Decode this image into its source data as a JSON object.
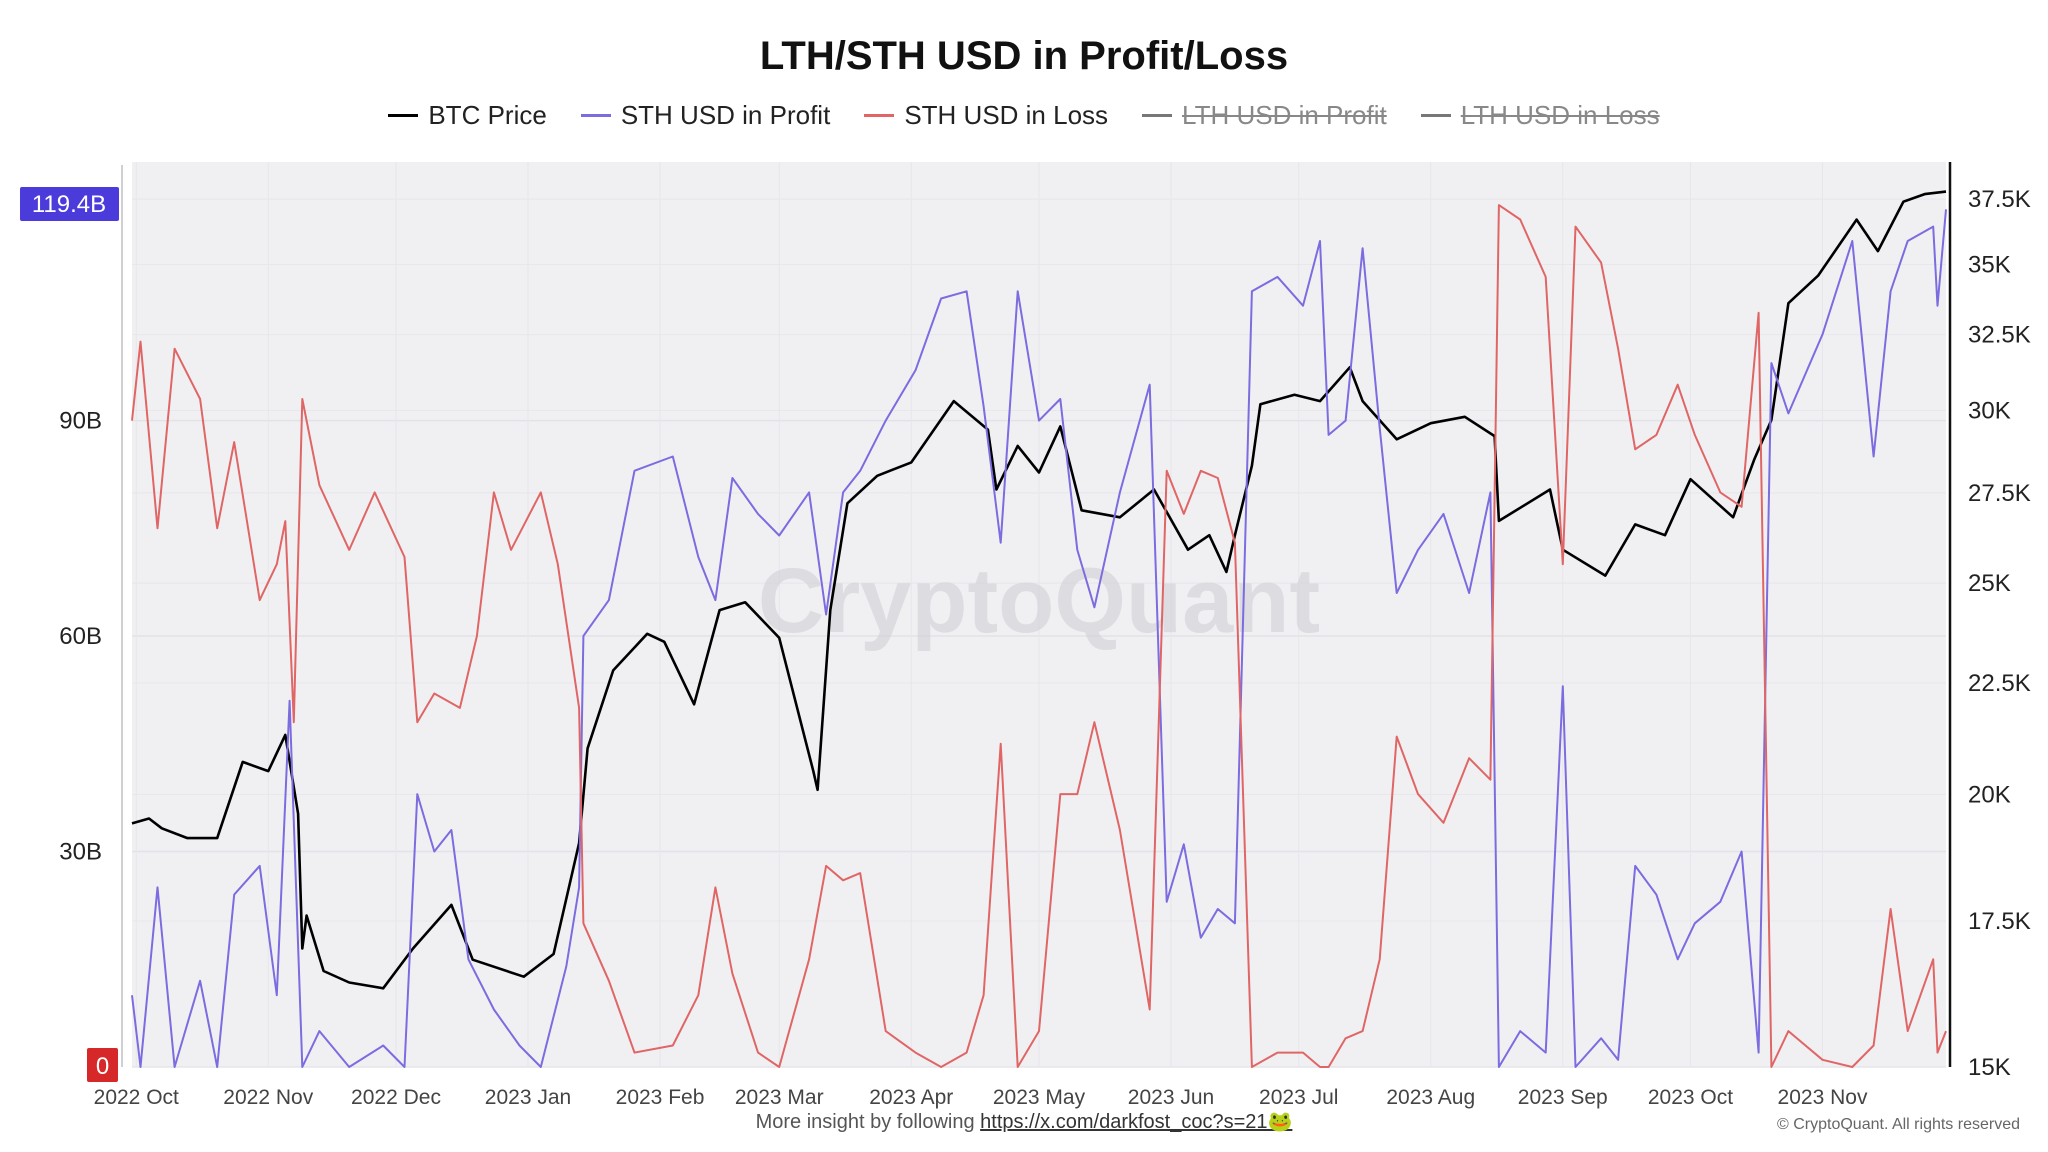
{
  "title": "LTH/STH USD in Profit/Loss",
  "legend": [
    {
      "label": "BTC Price",
      "color": "#000000",
      "hidden": false
    },
    {
      "label": "STH USD in Profit",
      "color": "#7b6ce0",
      "hidden": false
    },
    {
      "label": "STH USD in Loss",
      "color": "#e06666",
      "hidden": false
    },
    {
      "label": "LTH USD in Profit",
      "color": "#777777",
      "hidden": true
    },
    {
      "label": "LTH USD in Loss",
      "color": "#777777",
      "hidden": true
    }
  ],
  "footer": {
    "text": "More insight by following ",
    "link": "https://x.com/darkfost_coc?s=21🐸",
    "copyright": "© CryptoQuant. All rights reserved"
  },
  "watermark": "CryptoQuant",
  "chart_data": {
    "type": "line",
    "x_ticks": [
      "2022 Oct",
      "2022 Nov",
      "2022 Dec",
      "2023 Jan",
      "2023 Feb",
      "2023 Mar",
      "2023 Apr",
      "2023 May",
      "2023 Jun",
      "2023 Jul",
      "2023 Aug",
      "2023 Sep",
      "2023 Oct",
      "2023 Nov"
    ],
    "x_range": [
      "2022-09-30",
      "2023-11-30"
    ],
    "left_axis": {
      "ticks": [
        "0",
        "30B",
        "60B",
        "90B"
      ],
      "range": [
        0,
        126
      ],
      "highlight_top": "119.4B",
      "highlight_bottom": "0",
      "unit": "B USD"
    },
    "right_axis": {
      "ticks": [
        "15K",
        "17.5K",
        "20K",
        "22.5K",
        "25K",
        "27.5K",
        "30K",
        "32.5K",
        "35K",
        "37.5K"
      ],
      "scale": "log",
      "range": [
        15000,
        39000
      ]
    },
    "series": [
      {
        "name": "BTC Price",
        "axis": "right",
        "color": "#000000",
        "points": [
          [
            "2022-09-30",
            19400
          ],
          [
            "2022-10-04",
            19500
          ],
          [
            "2022-10-07",
            19300
          ],
          [
            "2022-10-13",
            19100
          ],
          [
            "2022-10-20",
            19100
          ],
          [
            "2022-10-26",
            20700
          ],
          [
            "2022-11-01",
            20500
          ],
          [
            "2022-11-05",
            21300
          ],
          [
            "2022-11-08",
            19600
          ],
          [
            "2022-11-09",
            17000
          ],
          [
            "2022-11-10",
            17600
          ],
          [
            "2022-11-14",
            16600
          ],
          [
            "2022-11-20",
            16400
          ],
          [
            "2022-11-28",
            16300
          ],
          [
            "2022-12-05",
            17000
          ],
          [
            "2022-12-14",
            17800
          ],
          [
            "2022-12-19",
            16800
          ],
          [
            "2022-12-31",
            16500
          ],
          [
            "2023-01-07",
            16900
          ],
          [
            "2023-01-13",
            19000
          ],
          [
            "2023-01-15",
            21000
          ],
          [
            "2023-01-21",
            22800
          ],
          [
            "2023-01-29",
            23700
          ],
          [
            "2023-02-02",
            23500
          ],
          [
            "2023-02-09",
            22000
          ],
          [
            "2023-02-15",
            24300
          ],
          [
            "2023-02-21",
            24500
          ],
          [
            "2023-03-01",
            23600
          ],
          [
            "2023-03-09",
            20500
          ],
          [
            "2023-03-10",
            20100
          ],
          [
            "2023-03-13",
            24300
          ],
          [
            "2023-03-17",
            27200
          ],
          [
            "2023-03-24",
            28000
          ],
          [
            "2023-04-01",
            28400
          ],
          [
            "2023-04-11",
            30300
          ],
          [
            "2023-04-19",
            29400
          ],
          [
            "2023-04-21",
            27600
          ],
          [
            "2023-04-26",
            28900
          ],
          [
            "2023-05-01",
            28100
          ],
          [
            "2023-05-06",
            29500
          ],
          [
            "2023-05-11",
            27000
          ],
          [
            "2023-05-20",
            26800
          ],
          [
            "2023-05-28",
            27600
          ],
          [
            "2023-06-05",
            25900
          ],
          [
            "2023-06-10",
            26300
          ],
          [
            "2023-06-14",
            25300
          ],
          [
            "2023-06-16",
            26300
          ],
          [
            "2023-06-20",
            28300
          ],
          [
            "2023-06-22",
            30200
          ],
          [
            "2023-06-30",
            30500
          ],
          [
            "2023-07-06",
            30300
          ],
          [
            "2023-07-13",
            31400
          ],
          [
            "2023-07-16",
            30300
          ],
          [
            "2023-07-24",
            29100
          ],
          [
            "2023-08-01",
            29600
          ],
          [
            "2023-08-09",
            29800
          ],
          [
            "2023-08-16",
            29200
          ],
          [
            "2023-08-17",
            26700
          ],
          [
            "2023-08-29",
            27600
          ],
          [
            "2023-09-01",
            25900
          ],
          [
            "2023-09-11",
            25200
          ],
          [
            "2023-09-18",
            26600
          ],
          [
            "2023-09-25",
            26300
          ],
          [
            "2023-10-01",
            27900
          ],
          [
            "2023-10-11",
            26800
          ],
          [
            "2023-10-16",
            28500
          ],
          [
            "2023-10-20",
            29700
          ],
          [
            "2023-10-24",
            33600
          ],
          [
            "2023-10-31",
            34600
          ],
          [
            "2023-11-09",
            36700
          ],
          [
            "2023-11-14",
            35500
          ],
          [
            "2023-11-20",
            37400
          ],
          [
            "2023-11-25",
            37700
          ],
          [
            "2023-11-30",
            37800
          ]
        ]
      },
      {
        "name": "STH USD in Profit",
        "axis": "left",
        "color": "#7b6ce0",
        "points": [
          [
            "2022-09-30",
            10
          ],
          [
            "2022-10-02",
            0
          ],
          [
            "2022-10-06",
            25
          ],
          [
            "2022-10-10",
            0
          ],
          [
            "2022-10-16",
            12
          ],
          [
            "2022-10-20",
            0
          ],
          [
            "2022-10-24",
            24
          ],
          [
            "2022-10-30",
            28
          ],
          [
            "2022-11-03",
            10
          ],
          [
            "2022-11-06",
            51
          ],
          [
            "2022-11-09",
            0
          ],
          [
            "2022-11-13",
            5
          ],
          [
            "2022-11-20",
            0
          ],
          [
            "2022-11-28",
            3
          ],
          [
            "2022-12-03",
            0
          ],
          [
            "2022-12-06",
            38
          ],
          [
            "2022-12-10",
            30
          ],
          [
            "2022-12-14",
            33
          ],
          [
            "2022-12-18",
            15
          ],
          [
            "2022-12-24",
            8
          ],
          [
            "2022-12-30",
            3
          ],
          [
            "2023-01-04",
            0
          ],
          [
            "2023-01-10",
            14
          ],
          [
            "2023-01-13",
            25
          ],
          [
            "2023-01-14",
            60
          ],
          [
            "2023-01-20",
            65
          ],
          [
            "2023-01-26",
            83
          ],
          [
            "2023-02-04",
            85
          ],
          [
            "2023-02-10",
            71
          ],
          [
            "2023-02-14",
            65
          ],
          [
            "2023-02-18",
            82
          ],
          [
            "2023-02-24",
            77
          ],
          [
            "2023-03-01",
            74
          ],
          [
            "2023-03-08",
            80
          ],
          [
            "2023-03-12",
            63
          ],
          [
            "2023-03-16",
            80
          ],
          [
            "2023-03-20",
            83
          ],
          [
            "2023-03-26",
            90
          ],
          [
            "2023-04-02",
            97
          ],
          [
            "2023-04-08",
            107
          ],
          [
            "2023-04-14",
            108
          ],
          [
            "2023-04-18",
            92
          ],
          [
            "2023-04-22",
            73
          ],
          [
            "2023-04-26",
            108
          ],
          [
            "2023-05-01",
            90
          ],
          [
            "2023-05-06",
            93
          ],
          [
            "2023-05-10",
            72
          ],
          [
            "2023-05-14",
            64
          ],
          [
            "2023-05-20",
            80
          ],
          [
            "2023-05-27",
            95
          ],
          [
            "2023-05-31",
            23
          ],
          [
            "2023-06-04",
            31
          ],
          [
            "2023-06-08",
            18
          ],
          [
            "2023-06-12",
            22
          ],
          [
            "2023-06-16",
            20
          ],
          [
            "2023-06-20",
            108
          ],
          [
            "2023-06-26",
            110
          ],
          [
            "2023-07-02",
            106
          ],
          [
            "2023-07-06",
            115
          ],
          [
            "2023-07-08",
            88
          ],
          [
            "2023-07-12",
            90
          ],
          [
            "2023-07-16",
            114
          ],
          [
            "2023-07-20",
            89
          ],
          [
            "2023-07-24",
            66
          ],
          [
            "2023-07-29",
            72
          ],
          [
            "2023-08-04",
            77
          ],
          [
            "2023-08-10",
            66
          ],
          [
            "2023-08-15",
            80
          ],
          [
            "2023-08-17",
            0
          ],
          [
            "2023-08-22",
            5
          ],
          [
            "2023-08-28",
            2
          ],
          [
            "2023-09-01",
            53
          ],
          [
            "2023-09-04",
            0
          ],
          [
            "2023-09-10",
            4
          ],
          [
            "2023-09-14",
            1
          ],
          [
            "2023-09-18",
            28
          ],
          [
            "2023-09-23",
            24
          ],
          [
            "2023-09-28",
            15
          ],
          [
            "2023-10-02",
            20
          ],
          [
            "2023-10-08",
            23
          ],
          [
            "2023-10-13",
            30
          ],
          [
            "2023-10-17",
            2
          ],
          [
            "2023-10-20",
            98
          ],
          [
            "2023-10-24",
            91
          ],
          [
            "2023-11-01",
            102
          ],
          [
            "2023-11-08",
            115
          ],
          [
            "2023-11-13",
            85
          ],
          [
            "2023-11-17",
            108
          ],
          [
            "2023-11-21",
            115
          ],
          [
            "2023-11-27",
            117
          ],
          [
            "2023-11-28",
            106
          ],
          [
            "2023-11-30",
            119.4
          ]
        ]
      },
      {
        "name": "STH USD in Loss",
        "axis": "left",
        "color": "#e06666",
        "points": [
          [
            "2022-09-30",
            90
          ],
          [
            "2022-10-02",
            101
          ],
          [
            "2022-10-06",
            75
          ],
          [
            "2022-10-10",
            100
          ],
          [
            "2022-10-16",
            93
          ],
          [
            "2022-10-20",
            75
          ],
          [
            "2022-10-24",
            87
          ],
          [
            "2022-10-30",
            65
          ],
          [
            "2022-11-03",
            70
          ],
          [
            "2022-11-05",
            76
          ],
          [
            "2022-11-07",
            48
          ],
          [
            "2022-11-09",
            93
          ],
          [
            "2022-11-13",
            81
          ],
          [
            "2022-11-20",
            72
          ],
          [
            "2022-11-26",
            80
          ],
          [
            "2022-12-03",
            71
          ],
          [
            "2022-12-06",
            48
          ],
          [
            "2022-12-10",
            52
          ],
          [
            "2022-12-16",
            50
          ],
          [
            "2022-12-20",
            60
          ],
          [
            "2022-12-24",
            80
          ],
          [
            "2022-12-28",
            72
          ],
          [
            "2023-01-04",
            80
          ],
          [
            "2023-01-08",
            70
          ],
          [
            "2023-01-13",
            50
          ],
          [
            "2023-01-14",
            20
          ],
          [
            "2023-01-20",
            12
          ],
          [
            "2023-01-26",
            2
          ],
          [
            "2023-02-04",
            3
          ],
          [
            "2023-02-10",
            10
          ],
          [
            "2023-02-14",
            25
          ],
          [
            "2023-02-18",
            13
          ],
          [
            "2023-02-24",
            2
          ],
          [
            "2023-03-01",
            0
          ],
          [
            "2023-03-08",
            15
          ],
          [
            "2023-03-12",
            28
          ],
          [
            "2023-03-16",
            26
          ],
          [
            "2023-03-20",
            27
          ],
          [
            "2023-03-26",
            5
          ],
          [
            "2023-04-02",
            2
          ],
          [
            "2023-04-08",
            0
          ],
          [
            "2023-04-14",
            2
          ],
          [
            "2023-04-18",
            10
          ],
          [
            "2023-04-22",
            45
          ],
          [
            "2023-04-26",
            0
          ],
          [
            "2023-05-01",
            5
          ],
          [
            "2023-05-06",
            38
          ],
          [
            "2023-05-10",
            38
          ],
          [
            "2023-05-14",
            48
          ],
          [
            "2023-05-20",
            33
          ],
          [
            "2023-05-27",
            8
          ],
          [
            "2023-05-31",
            83
          ],
          [
            "2023-06-04",
            77
          ],
          [
            "2023-06-08",
            83
          ],
          [
            "2023-06-12",
            82
          ],
          [
            "2023-06-16",
            73
          ],
          [
            "2023-06-20",
            0
          ],
          [
            "2023-06-26",
            2
          ],
          [
            "2023-07-02",
            2
          ],
          [
            "2023-07-06",
            0
          ],
          [
            "2023-07-08",
            0
          ],
          [
            "2023-07-12",
            4
          ],
          [
            "2023-07-16",
            5
          ],
          [
            "2023-07-20",
            15
          ],
          [
            "2023-07-24",
            46
          ],
          [
            "2023-07-29",
            38
          ],
          [
            "2023-08-04",
            34
          ],
          [
            "2023-08-10",
            43
          ],
          [
            "2023-08-15",
            40
          ],
          [
            "2023-08-17",
            120
          ],
          [
            "2023-08-22",
            118
          ],
          [
            "2023-08-28",
            110
          ],
          [
            "2023-09-01",
            70
          ],
          [
            "2023-09-04",
            117
          ],
          [
            "2023-09-10",
            112
          ],
          [
            "2023-09-14",
            100
          ],
          [
            "2023-09-18",
            86
          ],
          [
            "2023-09-23",
            88
          ],
          [
            "2023-09-28",
            95
          ],
          [
            "2023-10-02",
            88
          ],
          [
            "2023-10-08",
            80
          ],
          [
            "2023-10-13",
            78
          ],
          [
            "2023-10-17",
            105
          ],
          [
            "2023-10-20",
            0
          ],
          [
            "2023-10-24",
            5
          ],
          [
            "2023-11-01",
            1
          ],
          [
            "2023-11-08",
            0
          ],
          [
            "2023-11-13",
            3
          ],
          [
            "2023-11-17",
            22
          ],
          [
            "2023-11-21",
            5
          ],
          [
            "2023-11-27",
            15
          ],
          [
            "2023-11-28",
            2
          ],
          [
            "2023-11-30",
            5
          ]
        ]
      }
    ]
  }
}
